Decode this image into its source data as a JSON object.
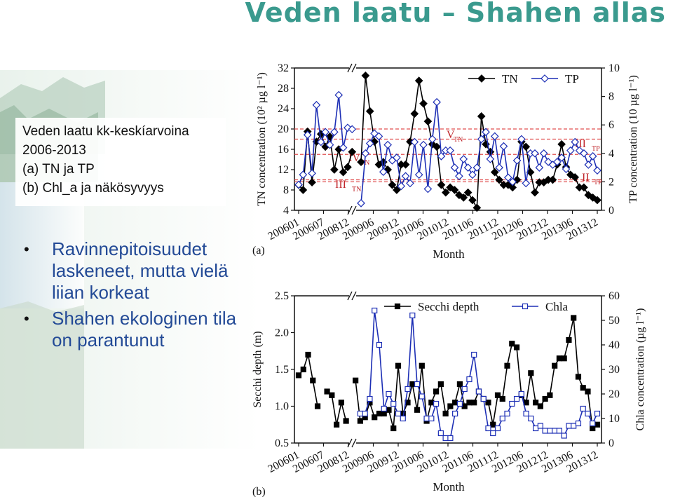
{
  "slide": {
    "title": "Veden laatu – Shahen allas",
    "summary": [
      "Veden laatu kk-keskíarvoina",
      "2006-2013",
      "(a)  TN ja TP",
      "(b)  Chl_a ja näkösyvyys"
    ],
    "bullets": [
      "Ravinnepitoisuudet laskeneet, mutta vielä liian korkeat",
      "Shahen ekologinen tila on parantunut"
    ]
  },
  "colors": {
    "title": "#3a9a8e",
    "bullet_text": "#234a96",
    "series_black": "#000000",
    "series_blue": "#1d2fb5",
    "class_line": "#e05050",
    "class_text": "#c0282d"
  },
  "chart_data": [
    {
      "type": "line",
      "panel_label": "(a)",
      "xlabel": "Month",
      "x_ticks": [
        "200601",
        "200607",
        "200812",
        "200906",
        "200912",
        "201006",
        "201012",
        "201106",
        "201112",
        "201206",
        "201212",
        "201306",
        "201312"
      ],
      "ylabel": "TN concentration (10² µg l⁻¹)",
      "ylim": [
        4,
        32
      ],
      "y_ticks": [
        "4",
        "8",
        "12",
        "16",
        "20",
        "24",
        "28",
        "32"
      ],
      "y2label": "TP concentration (10 µg l⁻¹)",
      "y2lim": [
        0,
        10
      ],
      "y2_ticks": [
        "0",
        "2",
        "4",
        "6",
        "8",
        "10"
      ],
      "legend": [
        "TN",
        "TP"
      ],
      "axis_break": "//",
      "class_lines": [
        {
          "axis": "y",
          "value": 20,
          "label": "V",
          "sub": "TN"
        },
        {
          "axis": "y",
          "value": 15,
          "label": "IV",
          "sub": "TN"
        },
        {
          "axis": "y",
          "value": 10,
          "label": "III",
          "sub": "TN"
        },
        {
          "axis": "y2",
          "value": 5,
          "label": "III",
          "sub": "TP"
        },
        {
          "axis": "y2",
          "value": 2,
          "label": "II",
          "sub": "TP"
        }
      ],
      "series": [
        {
          "name": "TN",
          "axis": "y",
          "marker": "diamond-filled",
          "values": [
            9.0,
            8.0,
            19.5,
            9.5,
            17.5,
            19.0,
            16.5,
            18.5,
            12.0,
            16.0,
            11.5,
            12.5,
            15.5,
            null,
            13.5,
            30.5,
            23.5,
            17.5,
            13.0,
            13.5,
            12.0,
            9.0,
            8.0,
            13.0,
            13.0,
            17.5,
            23.0,
            29.5,
            25.0,
            21.5,
            17.0,
            16.5,
            9.0,
            7.5,
            8.5,
            8.0,
            7.0,
            6.5,
            7.5,
            6.0,
            4.5,
            22.5,
            17.0,
            15.5,
            11.5,
            10.0,
            9.0,
            9.0,
            8.5,
            10.0,
            17.5,
            16.5,
            11.5,
            7.5,
            9.5,
            9.5,
            10.0,
            10.0,
            13.0,
            17.0,
            12.5,
            11.0,
            10.5,
            8.5,
            8.5,
            7.0,
            6.5,
            6.0
          ]
        },
        {
          "name": "TP",
          "axis": "y2",
          "marker": "diamond-open",
          "values": [
            1.8,
            2.5,
            5.3,
            2.6,
            7.4,
            4.8,
            5.5,
            4.6,
            5.5,
            8.1,
            4.4,
            5.8,
            5.7,
            null,
            0.5,
            4.0,
            4.7,
            5.4,
            5.2,
            2.7,
            4.6,
            3.5,
            3.7,
            1.7,
            2.4,
            1.9,
            4.8,
            2.5,
            4.6,
            1.5,
            5.0,
            7.6,
            3.8,
            4.2,
            4.2,
            3.0,
            2.4,
            3.6,
            3.0,
            2.5,
            3.0,
            5.0,
            5.5,
            3.6,
            5.2,
            3.0,
            4.5,
            2.3,
            2.0,
            3.5,
            5.0,
            1.9,
            4.0,
            4.0,
            3.0,
            4.0,
            3.4,
            3.2,
            3.4,
            3.7,
            2.9,
            4.2,
            4.8,
            4.2,
            4.0,
            3.2,
            3.8,
            2.8
          ]
        }
      ]
    },
    {
      "type": "line",
      "panel_label": "(b)",
      "xlabel": "Month",
      "x_ticks": [
        "200601",
        "200607",
        "200812",
        "200906",
        "200912",
        "201006",
        "201012",
        "201106",
        "201112",
        "201206",
        "201212",
        "201306",
        "201312"
      ],
      "ylabel": "Secchi depth (m)",
      "ylim": [
        0.5,
        2.5
      ],
      "y_ticks": [
        "0.5",
        "1.0",
        "1.5",
        "2.0",
        "2.5"
      ],
      "y2label": "Chla concentration (µg l⁻¹)",
      "y2lim": [
        0,
        60
      ],
      "y2_ticks": [
        "0",
        "10",
        "20",
        "30",
        "40",
        "50",
        "60"
      ],
      "legend": [
        "Secchi depth",
        "Chla"
      ],
      "axis_break": "//",
      "series": [
        {
          "name": "Secchi depth",
          "axis": "y",
          "marker": "square-filled",
          "values": [
            1.42,
            1.5,
            1.7,
            1.35,
            1.0,
            null,
            1.2,
            1.15,
            0.75,
            1.05,
            0.8,
            null,
            1.35,
            0.8,
            0.85,
            1.05,
            0.85,
            0.9,
            0.9,
            0.95,
            0.7,
            1.55,
            0.9,
            1.05,
            1.3,
            0.95,
            1.55,
            0.8,
            1.05,
            1.2,
            1.3,
            0.9,
            1.0,
            1.05,
            1.3,
            1.0,
            1.05,
            1.05,
            1.2,
            1.1,
            1.05,
            0.75,
            1.15,
            1.1,
            1.55,
            1.85,
            1.8,
            1.15,
            1.05,
            1.45,
            1.05,
            1.0,
            1.1,
            1.15,
            1.55,
            1.65,
            1.65,
            1.9,
            2.2,
            1.4,
            1.25,
            1.2,
            0.7,
            0.75
          ]
        },
        {
          "name": "Chla",
          "axis": "y2",
          "marker": "square-open",
          "values": [
            null,
            null,
            null,
            null,
            null,
            null,
            null,
            null,
            null,
            null,
            null,
            null,
            null,
            12,
            12,
            18,
            54,
            40,
            14,
            20,
            16,
            12,
            10,
            22,
            52,
            24,
            19,
            10,
            10,
            16,
            4,
            2,
            2,
            12,
            16,
            22,
            26,
            36,
            21,
            18,
            6,
            4,
            6,
            10,
            12,
            16,
            18,
            20,
            12,
            10,
            6,
            7,
            5,
            5,
            5,
            5,
            3,
            7,
            7,
            8,
            14,
            12,
            8,
            12
          ]
        }
      ]
    }
  ]
}
